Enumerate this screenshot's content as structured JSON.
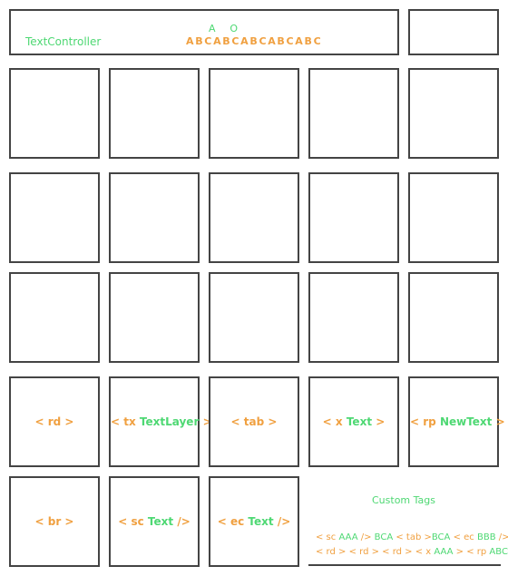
{
  "header": {
    "label": "TextController",
    "markers": "AO",
    "sequence": "ABCABCABCABCABC"
  },
  "tag_cells": {
    "rd": {
      "open": "< rd >"
    },
    "tx": {
      "open": "< tx",
      "text": "TextLayer",
      "close": ">"
    },
    "tab": {
      "open": "< tab >"
    },
    "x": {
      "open": "< x",
      "text": "Text",
      "close": ">"
    },
    "rp": {
      "open": "< rp",
      "text": "NewText",
      "close": ">"
    },
    "br": {
      "open": "< br >"
    },
    "sc": {
      "open": "< sc",
      "text": "Text",
      "close": "/>"
    },
    "ec": {
      "open": "< ec",
      "text": "Text",
      "close": "/>"
    }
  },
  "custom_tags": {
    "title": "Custom Tags",
    "line1": [
      {
        "t": "< sc ",
        "c": "o"
      },
      {
        "t": "AAA",
        "c": "g"
      },
      {
        "t": " /> ",
        "c": "o"
      },
      {
        "t": "BCA",
        "c": "g"
      },
      {
        "t": " < tab >",
        "c": "o"
      },
      {
        "t": "BCA",
        "c": "g"
      },
      {
        "t": " < ec ",
        "c": "o"
      },
      {
        "t": "BBB",
        "c": "g"
      },
      {
        "t": " />",
        "c": "o"
      }
    ],
    "line2": [
      {
        "t": "< rd > < rd > < rd > < x ",
        "c": "o"
      },
      {
        "t": "AAA",
        "c": "g"
      },
      {
        "t": " > < rp ",
        "c": "o"
      },
      {
        "t": "ABC",
        "c": "g"
      },
      {
        "t": " >",
        "c": "o"
      }
    ]
  },
  "colors": {
    "orange": "#f0a040",
    "green": "#4ed873",
    "border": "#444444"
  }
}
